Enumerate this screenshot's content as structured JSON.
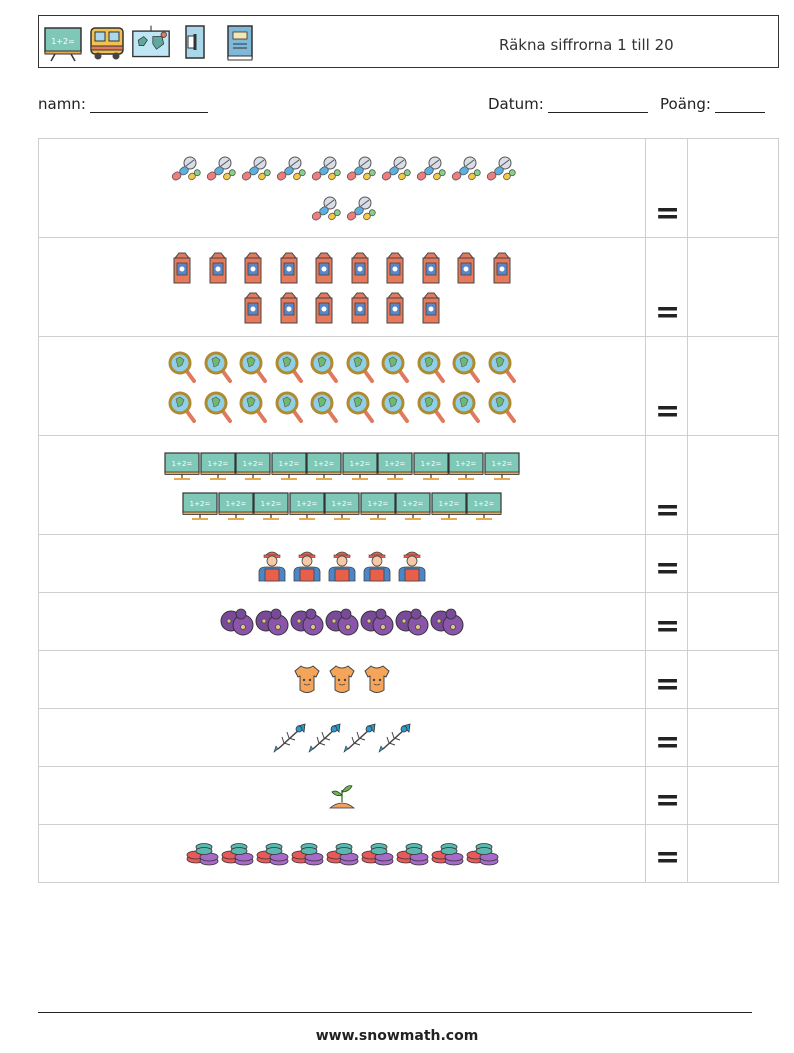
{
  "header": {
    "title": "Räkna siffrorna 1 till 20",
    "icons": [
      "chalkboard-icon",
      "school-bus-icon",
      "map-icon",
      "pencil-sharpener-icon",
      "book-icon"
    ],
    "chalkboard_text": "1+2="
  },
  "fields": {
    "name_label": "namn:",
    "date_label": "Datum:",
    "score_label": "Poäng:"
  },
  "rows": [
    {
      "object": "pills-icon",
      "count": 12,
      "equals": "="
    },
    {
      "object": "milk-carton-icon",
      "count": 16,
      "equals": "="
    },
    {
      "object": "magnifying-glass-icon",
      "count": 20,
      "equals": "="
    },
    {
      "object": "chalkboard-icon",
      "count": 19,
      "equals": "="
    },
    {
      "object": "worker-icon",
      "count": 5,
      "equals": "="
    },
    {
      "object": "plum-icon",
      "count": 7,
      "equals": "="
    },
    {
      "object": "baby-onesie-icon",
      "count": 3,
      "equals": "="
    },
    {
      "object": "fish-bone-icon",
      "count": 4,
      "equals": "="
    },
    {
      "object": "sprout-icon",
      "count": 1,
      "equals": "="
    },
    {
      "object": "macaron-icon",
      "count": 9,
      "equals": "="
    }
  ],
  "footer": {
    "url": "www.snowmath.com"
  }
}
